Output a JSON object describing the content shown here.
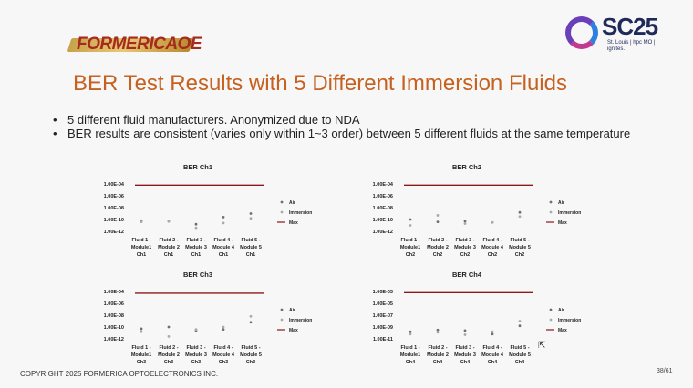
{
  "logo_left": "FORMERICAOE",
  "logo_right": {
    "text": "SC25",
    "sub": "St. Louis | hpc MO | ignites."
  },
  "title": "BER Test Results with 5 Different Immersion Fluids",
  "bullets": [
    "5 different fluid manufacturers. Anonymized due to NDA",
    "BER results are consistent (varies only within 1~3 order) between 5 different fluids at the same temperature"
  ],
  "footer": "COPYRIGHT 2025 FORMERICA OPTOELECTRONICS INC.",
  "page": "38/61",
  "colors": {
    "air": "#6f6f6f",
    "immersion": "#aaaaaa",
    "max": "#8b1a1a",
    "title": "#c6611f"
  },
  "chart_data": [
    {
      "type": "scatter",
      "title": "BER Ch1",
      "categories": [
        [
          "Fluid 1 -",
          "Module1",
          "Ch1"
        ],
        [
          "Fluid 2 -",
          "Module 2",
          "Ch1"
        ],
        [
          "Fluid 3 -",
          "Module 3",
          "Ch1"
        ],
        [
          "Fluid 4 -",
          "Module 4",
          "Ch1"
        ],
        [
          "Fluid 5 -",
          "Module 5",
          "Ch1"
        ]
      ],
      "y_ticks": [
        "1.00E-04",
        "1.00E-06",
        "1.00E-08",
        "1.00E-10",
        "1.00E-12"
      ],
      "y_scale": "log",
      "ylim": [
        -12,
        -4
      ],
      "legend": [
        "Air",
        "Immersion",
        "Max"
      ],
      "series": [
        {
          "name": "Air",
          "log10_values": [
            -10.2,
            -10.3,
            -10.8,
            -9.6,
            -9.0
          ]
        },
        {
          "name": "Immersion",
          "log10_values": [
            -10.4,
            -10.3,
            -11.4,
            -10.6,
            -9.8
          ]
        },
        {
          "name": "Max",
          "log10_values": [
            -4.2,
            -4.2,
            -4.2,
            -4.2,
            -4.2
          ]
        }
      ]
    },
    {
      "type": "scatter",
      "title": "BER Ch2",
      "categories": [
        [
          "Fluid 1 -",
          "Module1",
          "Ch2"
        ],
        [
          "Fluid 2 -",
          "Module 2",
          "Ch2"
        ],
        [
          "Fluid 3 -",
          "Module 3",
          "Ch2"
        ],
        [
          "Fluid 4 -",
          "Module 4",
          "Ch2"
        ],
        [
          "Fluid 5 -",
          "Module 5",
          "Ch2"
        ]
      ],
      "y_ticks": [
        "1.00E-04",
        "1.00E-06",
        "1.00E-08",
        "1.00E-10",
        "1.00E-12"
      ],
      "y_scale": "log",
      "ylim": [
        -12,
        -4
      ],
      "legend": [
        "Air",
        "Immersion",
        "Max"
      ],
      "series": [
        {
          "name": "Air",
          "log10_values": [
            -10.0,
            -10.4,
            -10.3,
            -10.5,
            -8.8
          ]
        },
        {
          "name": "Immersion",
          "log10_values": [
            -11.0,
            -9.3,
            -10.7,
            -10.5,
            -9.5
          ]
        },
        {
          "name": "Max",
          "log10_values": [
            -4.2,
            -4.2,
            -4.2,
            -4.2,
            -4.2
          ]
        }
      ]
    },
    {
      "type": "scatter",
      "title": "BER Ch3",
      "categories": [
        [
          "Fluid 1 -",
          "Module1",
          "Ch3"
        ],
        [
          "Fluid 2 -",
          "Module 2",
          "Ch3"
        ],
        [
          "Fluid 3 -",
          "Module 3",
          "Ch3"
        ],
        [
          "Fluid 4 -",
          "Module 4",
          "Ch3"
        ],
        [
          "Fluid 5 -",
          "Module 5",
          "Ch3"
        ]
      ],
      "y_ticks": [
        "1.00E-04",
        "1.00E-06",
        "1.00E-08",
        "1.00E-10",
        "1.00E-12"
      ],
      "y_scale": "log",
      "ylim": [
        -12,
        -4
      ],
      "legend": [
        "Air",
        "Immersion",
        "Max"
      ],
      "series": [
        {
          "name": "Air",
          "log10_values": [
            -10.3,
            -10.0,
            -10.6,
            -10.4,
            -9.2
          ]
        },
        {
          "name": "Immersion",
          "log10_values": [
            -10.8,
            -11.6,
            -10.4,
            -10.0,
            -8.2
          ]
        },
        {
          "name": "Max",
          "log10_values": [
            -4.3,
            -4.3,
            -4.3,
            -4.3,
            -4.3
          ]
        }
      ]
    },
    {
      "type": "scatter",
      "title": "BER Ch4",
      "categories": [
        [
          "Fluid 1 -",
          "Module1",
          "Ch4"
        ],
        [
          "Fluid 2 -",
          "Module 2",
          "Ch4"
        ],
        [
          "Fluid 3 -",
          "Module 3",
          "Ch4"
        ],
        [
          "Fluid 4 -",
          "Module 4",
          "Ch4"
        ],
        [
          "Fluid 5 -",
          "Module 5",
          "Ch4"
        ]
      ],
      "y_ticks": [
        "1.00E-03",
        "1.00E-05",
        "1.00E-07",
        "1.00E-09",
        "1.00E-11"
      ],
      "y_scale": "log",
      "ylim": [
        -11,
        -3
      ],
      "legend": [
        "Air",
        "Immersion",
        "Max"
      ],
      "series": [
        {
          "name": "Air",
          "log10_values": [
            -9.8,
            -9.5,
            -9.6,
            -10.2,
            -8.8
          ]
        },
        {
          "name": "Immersion",
          "log10_values": [
            -10.2,
            -9.9,
            -10.3,
            -9.8,
            -8.0
          ]
        },
        {
          "name": "Max",
          "log10_values": [
            -3.2,
            -3.2,
            -3.2,
            -3.2,
            -3.2
          ]
        }
      ]
    }
  ]
}
